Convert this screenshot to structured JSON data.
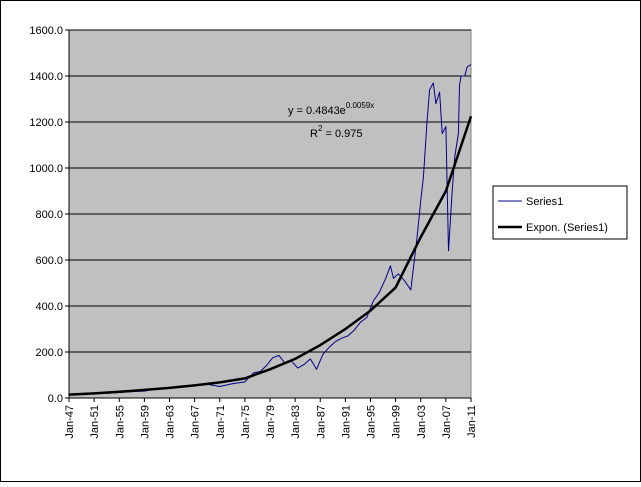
{
  "chart_data": {
    "type": "line",
    "title": "",
    "xlabel": "",
    "ylabel": "",
    "ylim": [
      0,
      1600
    ],
    "y_ticks": [
      "0.0",
      "200.0",
      "400.0",
      "600.0",
      "800.0",
      "1000.0",
      "1200.0",
      "1400.0",
      "1600.0"
    ],
    "x_range": [
      "1947-01",
      "2011-01"
    ],
    "x_ticks": [
      "Jan-47",
      "Jan-51",
      "Jan-55",
      "Jan-59",
      "Jan-63",
      "Jan-67",
      "Jan-71",
      "Jan-75",
      "Jan-79",
      "Jan-83",
      "Jan-87",
      "Jan-91",
      "Jan-95",
      "Jan-99",
      "Jan-03",
      "Jan-07",
      "Jan-11"
    ],
    "grid": "horizontal major gridlines",
    "plot_background": "#c0c0c0",
    "legend_position": "right",
    "series": [
      {
        "name": "Series1",
        "color": "#00008b",
        "x": [
          "1947-01",
          "1949-01",
          "1951-01",
          "1953-01",
          "1955-01",
          "1957-01",
          "1959-01",
          "1961-01",
          "1963-01",
          "1965-01",
          "1967-01",
          "1969-01",
          "1971-01",
          "1973-01",
          "1975-01",
          "1976-06",
          "1977-06",
          "1978-06",
          "1979-06",
          "1980-06",
          "1981-06",
          "1982-06",
          "1983-06",
          "1984-06",
          "1985-06",
          "1986-06",
          "1987-06",
          "1988-06",
          "1989-06",
          "1990-06",
          "1991-06",
          "1992-06",
          "1993-06",
          "1994-06",
          "1995-06",
          "1996-06",
          "1997-06",
          "1998-03",
          "1998-09",
          "1999-06",
          "2000-06",
          "2001-06",
          "2002-06",
          "2003-01",
          "2003-06",
          "2004-01",
          "2004-06",
          "2005-01",
          "2005-06",
          "2006-01",
          "2006-06",
          "2007-01",
          "2007-06",
          "2008-01",
          "2008-06",
          "2009-01",
          "2009-03",
          "2009-06",
          "2010-01",
          "2010-06",
          "2011-01"
        ],
        "y": [
          15,
          15,
          22,
          20,
          24,
          28,
          30,
          40,
          45,
          52,
          55,
          60,
          50,
          62,
          70,
          110,
          115,
          140,
          175,
          185,
          150,
          160,
          130,
          145,
          170,
          125,
          190,
          220,
          245,
          260,
          270,
          295,
          330,
          350,
          420,
          460,
          520,
          575,
          520,
          540,
          510,
          470,
          700,
          860,
          960,
          1200,
          1340,
          1370,
          1280,
          1330,
          1150,
          1180,
          640,
          900,
          1050,
          1150,
          1360,
          1400,
          1400,
          1440,
          1450
        ]
      },
      {
        "name": "Expon. (Series1)",
        "color": "#000000",
        "trend": {
          "type": "exponential",
          "a": 0.4843,
          "b": 0.0059,
          "x_unit": "months since Jan-47",
          "r_squared": 0.975
        },
        "x": [
          "1947-01",
          "1951-01",
          "1955-01",
          "1959-01",
          "1963-01",
          "1967-01",
          "1971-01",
          "1975-01",
          "1979-01",
          "1983-01",
          "1987-01",
          "1991-01",
          "1995-01",
          "1999-01",
          "2003-01",
          "2007-01",
          "2011-01"
        ],
        "y": [
          15,
          20,
          27,
          35,
          44,
          55,
          68,
          85,
          125,
          170,
          230,
          300,
          380,
          480,
          700,
          900,
          1225
        ]
      }
    ],
    "annotations": {
      "equation_prefix": "y = 0.4843e",
      "equation_exponent": "0.0059x",
      "r2_prefix": "R",
      "r2_superscript": "2",
      "r2_suffix": " = 0.975"
    }
  }
}
